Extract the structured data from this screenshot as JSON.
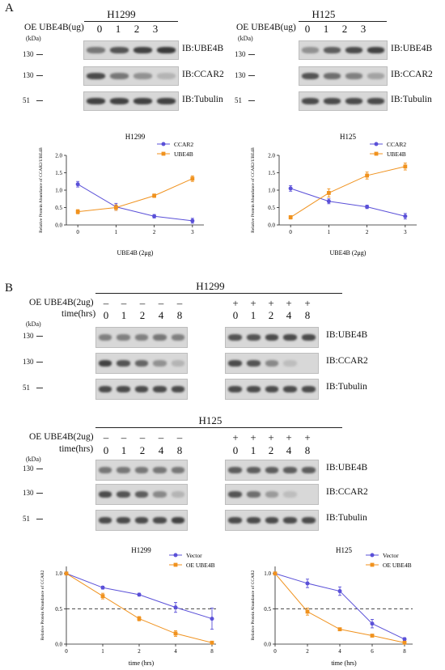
{
  "panel_a": {
    "letter": "A",
    "blots": [
      {
        "title": "H1299",
        "oe_label": "OE UBE4B(ug)",
        "lanes": [
          "0",
          "1",
          "2",
          "3"
        ],
        "kda": "(kDa)",
        "rows": [
          {
            "ib": "IB:UBE4B",
            "mw": "130",
            "intensity": [
              0.55,
              0.75,
              0.85,
              0.9
            ]
          },
          {
            "ib": "IB:CCAR2",
            "mw": "130",
            "intensity": [
              0.8,
              0.55,
              0.4,
              0.2
            ]
          },
          {
            "ib": "IB:Tubulin",
            "mw": "51",
            "intensity": [
              0.85,
              0.85,
              0.85,
              0.85
            ]
          }
        ]
      },
      {
        "title": "H125",
        "oe_label": "OE UBE4B(ug)",
        "lanes": [
          "0",
          "1",
          "2",
          "3"
        ],
        "kda": "(kDa)",
        "rows": [
          {
            "ib": "IB:UBE4B",
            "mw": "130",
            "intensity": [
              0.4,
              0.7,
              0.8,
              0.85
            ]
          },
          {
            "ib": "IB:CCAR2",
            "mw": "130",
            "intensity": [
              0.75,
              0.6,
              0.5,
              0.3
            ]
          },
          {
            "ib": "IB:Tubulin",
            "mw": "51",
            "intensity": [
              0.8,
              0.8,
              0.8,
              0.8
            ]
          }
        ]
      }
    ]
  },
  "panel_b": {
    "letter": "B",
    "blots": [
      {
        "title": "H1299",
        "oe_label": "OE UBE4B(2ug)",
        "time_label": "time(hrs)",
        "signs": [
          "–",
          "–",
          "–",
          "–",
          "–",
          "+",
          "+",
          "+",
          "+",
          "+"
        ],
        "times": [
          "0",
          "1",
          "2",
          "4",
          "8",
          "0",
          "1",
          "2",
          "4",
          "8"
        ],
        "kda": "(kDa)",
        "rows": [
          {
            "ib": "IB:UBE4B",
            "mw": "130",
            "intensity": [
              0.5,
              0.5,
              0.5,
              0.55,
              0.5,
              0.75,
              0.75,
              0.8,
              0.8,
              0.8
            ]
          },
          {
            "ib": "IB:CCAR2",
            "mw": "130",
            "intensity": [
              0.85,
              0.75,
              0.65,
              0.4,
              0.2,
              0.8,
              0.75,
              0.45,
              0.15,
              0.0
            ]
          },
          {
            "ib": "IB:Tubulin",
            "mw": "51",
            "intensity": [
              0.8,
              0.8,
              0.8,
              0.8,
              0.8,
              0.8,
              0.8,
              0.8,
              0.8,
              0.8
            ]
          }
        ]
      },
      {
        "title": "H125",
        "oe_label": "OE UBE4B(2ug)",
        "time_label": "time(hrs)",
        "signs": [
          "–",
          "–",
          "–",
          "–",
          "–",
          "+",
          "+",
          "+",
          "+",
          "+"
        ],
        "times": [
          "0",
          "1",
          "2",
          "4",
          "8",
          "0",
          "1",
          "2",
          "4",
          "8"
        ],
        "kda": "(kDa)",
        "rows": [
          {
            "ib": "IB:UBE4B",
            "mw": "130",
            "intensity": [
              0.55,
              0.55,
              0.55,
              0.55,
              0.55,
              0.7,
              0.7,
              0.7,
              0.7,
              0.7
            ]
          },
          {
            "ib": "IB:CCAR2",
            "mw": "130",
            "intensity": [
              0.8,
              0.75,
              0.7,
              0.45,
              0.2,
              0.75,
              0.6,
              0.35,
              0.15,
              0.0
            ]
          },
          {
            "ib": "IB:Tubulin",
            "mw": "51",
            "intensity": [
              0.8,
              0.8,
              0.8,
              0.8,
              0.85,
              0.8,
              0.8,
              0.8,
              0.8,
              0.8
            ]
          }
        ]
      }
    ]
  },
  "chart_data": [
    {
      "type": "line",
      "title": "H1299",
      "xlabel": "UBE4B (2μg)",
      "ylabel": "Relative Protein Abundance of CCAR2/UBE4B",
      "xlim": [
        -0.3,
        3.3
      ],
      "ylim": [
        0,
        2.0
      ],
      "xticks": [
        "0",
        "1",
        "2",
        "3"
      ],
      "yticks": [
        "0.0",
        "0.5",
        "1.0",
        "1.5",
        "2.0"
      ],
      "legend": "top-right",
      "series": [
        {
          "name": "CCAR2",
          "color": "#5a50d8",
          "marker": "circle",
          "x": [
            0,
            1,
            2,
            3
          ],
          "y": [
            1.17,
            0.52,
            0.25,
            0.12
          ],
          "err": [
            0.08,
            0.1,
            0.05,
            0.07
          ]
        },
        {
          "name": "UBE4B",
          "color": "#f0921e",
          "marker": "square",
          "x": [
            0,
            1,
            2,
            3
          ],
          "y": [
            0.38,
            0.5,
            0.84,
            1.33
          ],
          "err": [
            0.06,
            0.08,
            0.05,
            0.08
          ]
        }
      ]
    },
    {
      "type": "line",
      "title": "H125",
      "xlabel": "UBE4B (2μg)",
      "ylabel": "Relative Protein Abundance of CCAR2/UBE4B",
      "xlim": [
        -0.3,
        3.3
      ],
      "ylim": [
        0,
        2.0
      ],
      "xticks": [
        "0",
        "1",
        "2",
        "3"
      ],
      "yticks": [
        "0.0",
        "0.5",
        "1.0",
        "1.5",
        "2.0"
      ],
      "legend": "top-right",
      "series": [
        {
          "name": "CCAR2",
          "color": "#5a50d8",
          "marker": "circle",
          "x": [
            0,
            1,
            2,
            3
          ],
          "y": [
            1.05,
            0.68,
            0.52,
            0.25
          ],
          "err": [
            0.08,
            0.07,
            0.05,
            0.08
          ]
        },
        {
          "name": "UBE4B",
          "color": "#f0921e",
          "marker": "square",
          "x": [
            0,
            1,
            2,
            3
          ],
          "y": [
            0.22,
            0.92,
            1.42,
            1.68
          ],
          "err": [
            0.05,
            0.12,
            0.1,
            0.1
          ]
        }
      ]
    },
    {
      "type": "line",
      "title": "H1299",
      "xlabel": "time (hrs)",
      "ylabel": "Relative Protein Abundance of CCAR2",
      "xlim": [
        0,
        8.5
      ],
      "ylim": [
        0,
        1.1
      ],
      "xticks": [
        "0",
        "1",
        "2",
        "4",
        "8"
      ],
      "xtick_pos": [
        0,
        1,
        2,
        4,
        8
      ],
      "xtick_style": "ordinal",
      "yticks": [
        "0.0",
        "0.5",
        "1.0"
      ],
      "ref_line": 0.5,
      "legend": "top-right",
      "series": [
        {
          "name": "Vector",
          "color": "#5a50d8",
          "marker": "circle",
          "x": [
            0,
            1,
            2,
            4,
            8
          ],
          "y": [
            1.0,
            0.8,
            0.7,
            0.52,
            0.36
          ],
          "err": [
            0.0,
            0.02,
            0.02,
            0.07,
            0.15
          ]
        },
        {
          "name": "OE UBE4B",
          "color": "#f0921e",
          "marker": "square",
          "x": [
            0,
            1,
            2,
            4,
            8
          ],
          "y": [
            1.0,
            0.68,
            0.36,
            0.15,
            0.02
          ],
          "err": [
            0.0,
            0.04,
            0.03,
            0.04,
            0.02
          ]
        }
      ]
    },
    {
      "type": "line",
      "title": "H125",
      "xlabel": "time (hrs)",
      "ylabel": "Relative Protein Abundance of CCAR2",
      "xlim": [
        0,
        8.5
      ],
      "ylim": [
        0,
        1.1
      ],
      "xticks": [
        "0",
        "2",
        "4",
        "6",
        "8"
      ],
      "xtick_pos": [
        0,
        2,
        4,
        6,
        8
      ],
      "xtick_style": "linear",
      "yticks": [
        "0.0",
        "0.5",
        "1.0"
      ],
      "ref_line": 0.5,
      "legend": "top-right",
      "series": [
        {
          "name": "Vector",
          "color": "#5a50d8",
          "marker": "circle",
          "x": [
            0,
            2,
            4,
            6,
            8
          ],
          "y": [
            1.0,
            0.86,
            0.75,
            0.29,
            0.07
          ],
          "err": [
            0.0,
            0.06,
            0.06,
            0.06,
            0.02
          ]
        },
        {
          "name": "OE UBE4B",
          "color": "#f0921e",
          "marker": "square",
          "x": [
            0,
            2,
            4,
            6,
            8
          ],
          "y": [
            1.0,
            0.46,
            0.21,
            0.12,
            0.02
          ],
          "err": [
            0.0,
            0.05,
            0.02,
            0.01,
            0.01
          ]
        }
      ]
    }
  ]
}
